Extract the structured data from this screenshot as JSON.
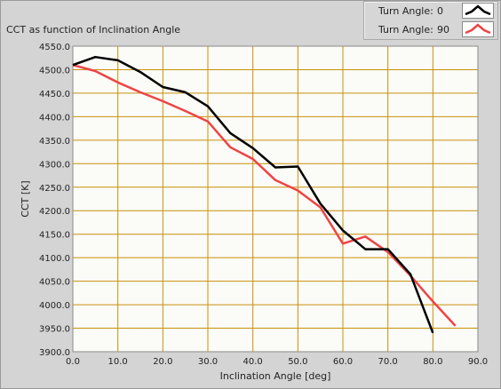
{
  "colors": {
    "plot_background": "#fbfbf7",
    "grid": "#c8900c",
    "series_0": "#000000",
    "series_1": "#ee4444"
  },
  "chart_data": {
    "type": "line",
    "title": "CCT as function of Inclination Angle",
    "xlabel": "Inclination Angle [deg]",
    "ylabel": "CCT [K]",
    "xlim": [
      0,
      90
    ],
    "ylim": [
      3900,
      4550
    ],
    "grid": true,
    "legend_position": "top-right",
    "x_ticks": [
      "0.0",
      "10.0",
      "20.0",
      "30.0",
      "40.0",
      "50.0",
      "60.0",
      "70.0",
      "80.0",
      "90.0"
    ],
    "y_ticks": [
      "3900.0",
      "3950.0",
      "4000.0",
      "4050.0",
      "4100.0",
      "4150.0",
      "4200.0",
      "4250.0",
      "4300.0",
      "4350.0",
      "4400.0",
      "4450.0",
      "4500.0",
      "4550.0"
    ],
    "series": [
      {
        "name": "Turn Angle:",
        "turn_angle": "0",
        "color": "#000000",
        "x": [
          0,
          5,
          10,
          15,
          20,
          25,
          30,
          35,
          40,
          45,
          50,
          55,
          60,
          65,
          70,
          75,
          80
        ],
        "y": [
          4510,
          4527,
          4520,
          4495,
          4463,
          4452,
          4422,
          4365,
          4333,
          4292,
          4294,
          4215,
          4158,
          4118,
          4118,
          4065,
          3940
        ]
      },
      {
        "name": "Turn Angle:",
        "turn_angle": "90",
        "color": "#ee4444",
        "x": [
          0,
          5,
          10,
          15,
          20,
          25,
          30,
          35,
          40,
          45,
          50,
          55,
          60,
          65,
          70,
          75,
          80,
          85
        ],
        "y": [
          4510,
          4497,
          4473,
          4452,
          4433,
          4412,
          4390,
          4335,
          4310,
          4265,
          4243,
          4207,
          4130,
          4145,
          4112,
          4062,
          4007,
          3955
        ]
      }
    ]
  }
}
